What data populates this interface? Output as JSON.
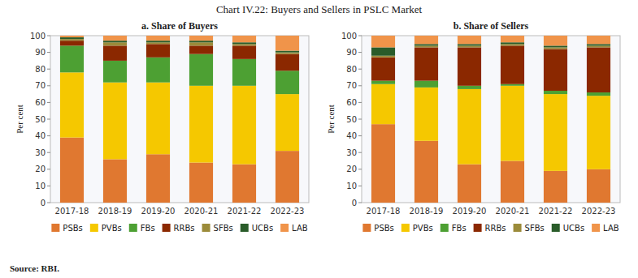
{
  "title": "Chart IV.22: Buyers and Sellers in PSLC Market",
  "source": "Source: RBI.",
  "chart_data": [
    {
      "type": "bar",
      "stacked": true,
      "title": "a. Share of Buyers",
      "categories": [
        "2017-18",
        "2018-19",
        "2019-20",
        "2020-21",
        "2021-22",
        "2022-23"
      ],
      "series": [
        {
          "name": "PSBs",
          "color": "#E07830",
          "values": [
            39,
            26,
            29,
            24,
            23,
            31
          ]
        },
        {
          "name": "PVBs",
          "color": "#F5C800",
          "values": [
            39,
            46,
            43,
            46,
            47,
            34
          ]
        },
        {
          "name": "FBs",
          "color": "#4DA033",
          "values": [
            16,
            13,
            15,
            19,
            16,
            14
          ]
        },
        {
          "name": "RRBs",
          "color": "#8B2800",
          "values": [
            3,
            9,
            8,
            5,
            8,
            10
          ]
        },
        {
          "name": "SFBs",
          "color": "#9B8B3A",
          "values": [
            1,
            2,
            1,
            2,
            1,
            1
          ]
        },
        {
          "name": "UCBs",
          "color": "#2A5C2A",
          "values": [
            1,
            1,
            1,
            1,
            1,
            1
          ]
        },
        {
          "name": "LAB",
          "color": "#F0944A",
          "values": [
            1,
            3,
            3,
            3,
            4,
            9
          ]
        }
      ],
      "ylabel": "Per cent",
      "ylim": [
        0,
        100
      ],
      "yticks": [
        0,
        10,
        20,
        30,
        40,
        50,
        60,
        70,
        80,
        90,
        100
      ],
      "grid": false,
      "legend": "bottom"
    },
    {
      "type": "bar",
      "stacked": true,
      "title": "b. Share of Sellers",
      "categories": [
        "2017-18",
        "2018-19",
        "2019-20",
        "2020-21",
        "2021-22",
        "2022-23"
      ],
      "series": [
        {
          "name": "PSBs",
          "color": "#E07830",
          "values": [
            47,
            37,
            23,
            25,
            19,
            20
          ]
        },
        {
          "name": "PVBs",
          "color": "#F5C800",
          "values": [
            24,
            32,
            45,
            45,
            46,
            44
          ]
        },
        {
          "name": "FBs",
          "color": "#4DA033",
          "values": [
            2,
            4,
            2,
            1,
            2,
            2
          ]
        },
        {
          "name": "RRBs",
          "color": "#8B2800",
          "values": [
            14,
            20,
            23,
            23,
            25,
            27
          ]
        },
        {
          "name": "SFBs",
          "color": "#9B8B3A",
          "values": [
            1,
            1,
            1,
            1,
            1,
            1
          ]
        },
        {
          "name": "UCBs",
          "color": "#2A5C2A",
          "values": [
            5,
            1,
            1,
            1,
            1,
            1
          ]
        },
        {
          "name": "LAB",
          "color": "#F0944A",
          "values": [
            7,
            5,
            5,
            4,
            6,
            5
          ]
        }
      ],
      "ylabel": "Per cent",
      "ylim": [
        0,
        100
      ],
      "yticks": [
        0,
        10,
        20,
        30,
        40,
        50,
        60,
        70,
        80,
        90,
        100
      ],
      "grid": false,
      "legend": "bottom"
    }
  ]
}
